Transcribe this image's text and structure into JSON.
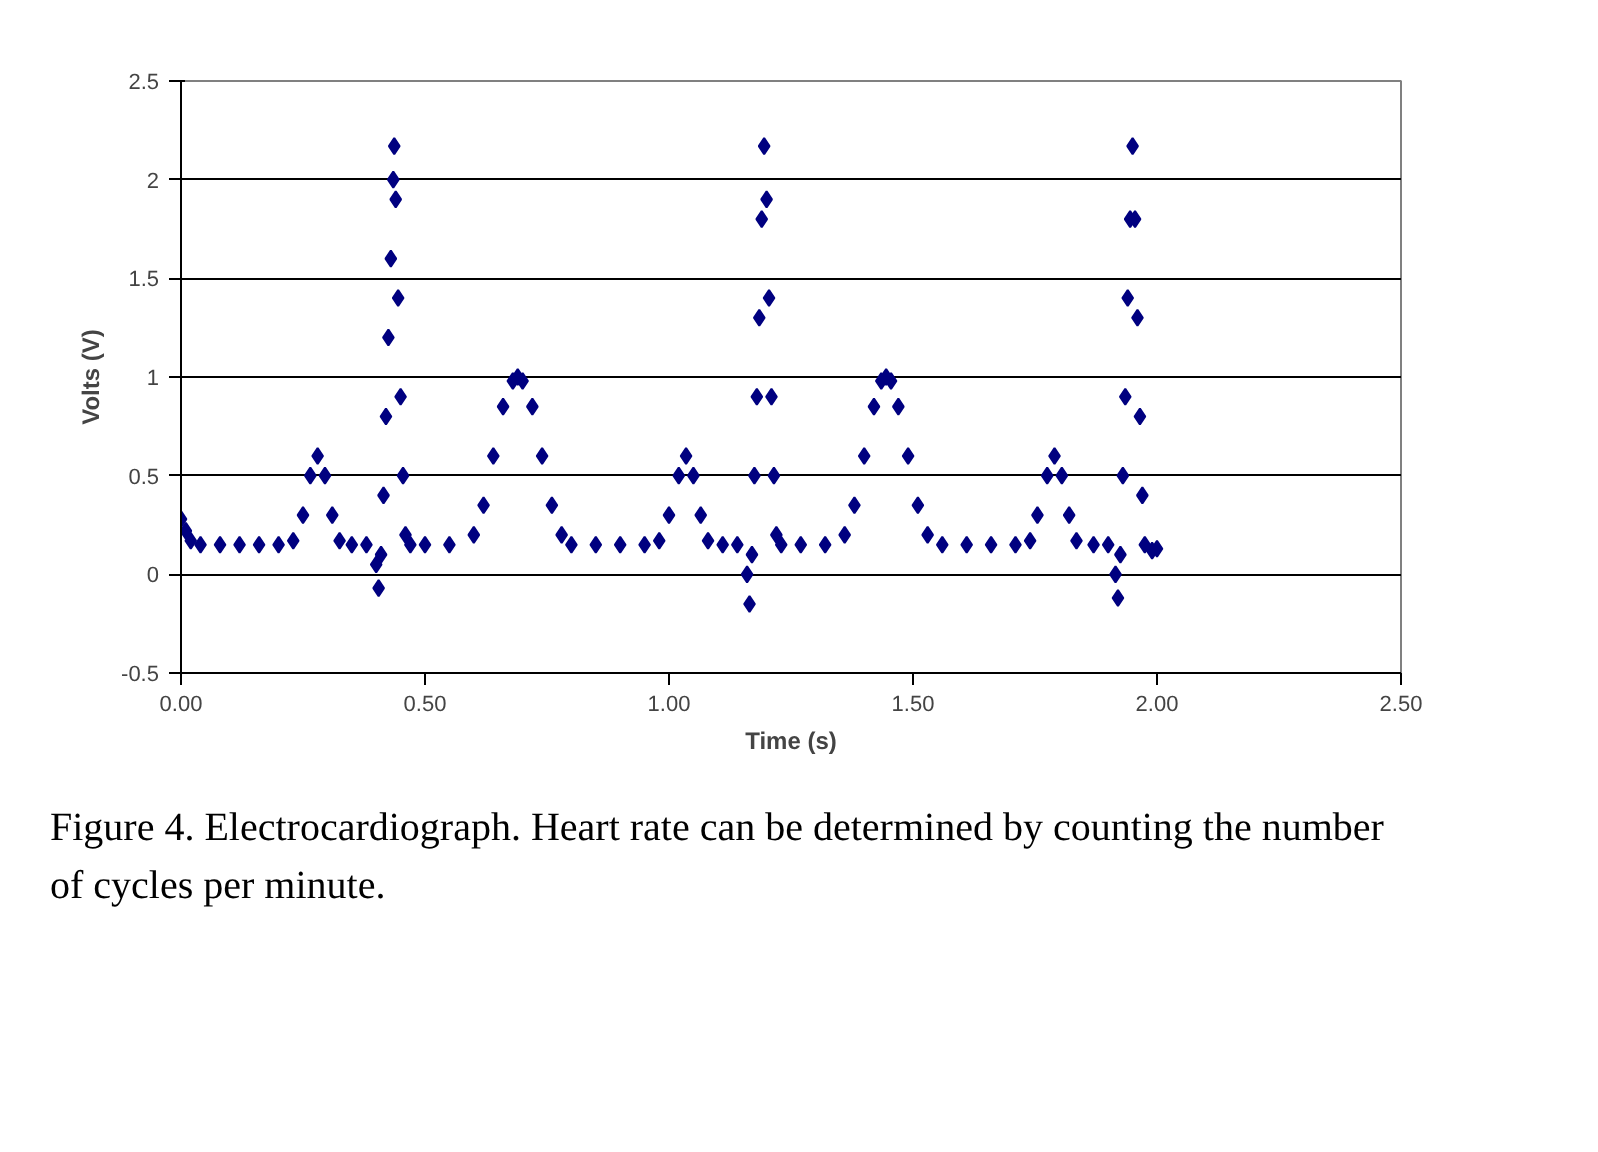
{
  "chart_data": {
    "type": "scatter",
    "xlabel": "Time (s)",
    "ylabel": "Volts (V)",
    "annotations": [
      "Figure 4.  Electrocardiograph.  Heart rate can be determined by counting the number of cycles per minute."
    ],
    "xlim": [
      0,
      2.5
    ],
    "ylim": [
      -0.5,
      2.5
    ],
    "xticks": [
      {
        "value": 0,
        "label": "0.00"
      },
      {
        "value": 0.5,
        "label": "0.50"
      },
      {
        "value": 1,
        "label": "1.00"
      },
      {
        "value": 1.5,
        "label": "1.50"
      },
      {
        "value": 2,
        "label": "2.00"
      },
      {
        "value": 2.5,
        "label": "2.50"
      }
    ],
    "yticks": [
      -0.5,
      0,
      0.5,
      1,
      1.5,
      2,
      2.5
    ],
    "grid": "y",
    "marker": "diamond",
    "series": [
      {
        "color": "#000080",
        "x": [
          0.0,
          0.01,
          0.02,
          0.04,
          0.08,
          0.12,
          0.16,
          0.2,
          0.23,
          0.25,
          0.265,
          0.28,
          0.295,
          0.31,
          0.325,
          0.35,
          0.38,
          0.4,
          0.405,
          0.41,
          0.415,
          0.42,
          0.425,
          0.43,
          0.435,
          0.437,
          0.44,
          0.445,
          0.45,
          0.455,
          0.46,
          0.47,
          0.5,
          0.55,
          0.6,
          0.62,
          0.64,
          0.66,
          0.68,
          0.69,
          0.7,
          0.72,
          0.74,
          0.76,
          0.78,
          0.8,
          0.85,
          0.9,
          0.95,
          0.98,
          1.0,
          1.02,
          1.035,
          1.05,
          1.065,
          1.08,
          1.11,
          1.14,
          1.16,
          1.165,
          1.17,
          1.175,
          1.18,
          1.185,
          1.19,
          1.195,
          1.2,
          1.205,
          1.21,
          1.215,
          1.22,
          1.23,
          1.27,
          1.32,
          1.36,
          1.38,
          1.4,
          1.42,
          1.435,
          1.445,
          1.455,
          1.47,
          1.49,
          1.51,
          1.53,
          1.56,
          1.61,
          1.66,
          1.71,
          1.74,
          1.755,
          1.775,
          1.79,
          1.805,
          1.82,
          1.835,
          1.87,
          1.9,
          1.915,
          1.92,
          1.925,
          1.93,
          1.935,
          1.94,
          1.945,
          1.95,
          1.955,
          1.96,
          1.965,
          1.97,
          1.975,
          1.99,
          2.0
        ],
        "values": [
          0.28,
          0.22,
          0.17,
          0.15,
          0.15,
          0.15,
          0.15,
          0.15,
          0.17,
          0.3,
          0.5,
          0.6,
          0.5,
          0.3,
          0.17,
          0.15,
          0.15,
          0.05,
          -0.07,
          0.1,
          0.4,
          0.8,
          1.2,
          1.6,
          2.0,
          2.17,
          1.9,
          1.4,
          0.9,
          0.5,
          0.2,
          0.15,
          0.15,
          0.15,
          0.2,
          0.35,
          0.6,
          0.85,
          0.98,
          1.0,
          0.98,
          0.85,
          0.6,
          0.35,
          0.2,
          0.15,
          0.15,
          0.15,
          0.15,
          0.17,
          0.3,
          0.5,
          0.6,
          0.5,
          0.3,
          0.17,
          0.15,
          0.15,
          0.0,
          -0.15,
          0.1,
          0.5,
          0.9,
          1.3,
          1.8,
          2.17,
          1.9,
          1.4,
          0.9,
          0.5,
          0.2,
          0.15,
          0.15,
          0.15,
          0.2,
          0.35,
          0.6,
          0.85,
          0.98,
          1.0,
          0.98,
          0.85,
          0.6,
          0.35,
          0.2,
          0.15,
          0.15,
          0.15,
          0.15,
          0.17,
          0.3,
          0.5,
          0.6,
          0.5,
          0.3,
          0.17,
          0.15,
          0.15,
          0.0,
          -0.12,
          0.1,
          0.5,
          0.9,
          1.4,
          1.8,
          2.17,
          1.8,
          1.3,
          0.8,
          0.4,
          0.15,
          0.12,
          0.13
        ]
      }
    ]
  }
}
